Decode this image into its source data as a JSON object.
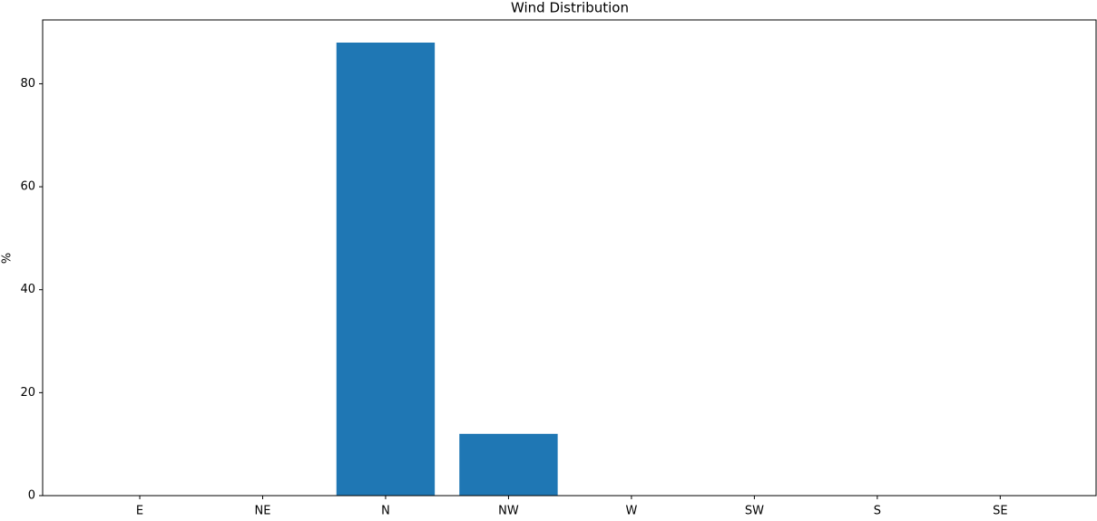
{
  "chart_data": {
    "type": "bar",
    "title": "Wind Distribution",
    "y_label": "%",
    "categories": [
      "E",
      "NE",
      "N",
      "NW",
      "W",
      "SW",
      "S",
      "SE"
    ],
    "values": [
      0,
      0,
      88,
      12,
      0,
      0,
      0,
      0
    ],
    "color": "#1f77b4",
    "ylim": [
      0,
      92.4
    ],
    "yticks": [
      0,
      20,
      40,
      60,
      80
    ],
    "grid": false
  }
}
